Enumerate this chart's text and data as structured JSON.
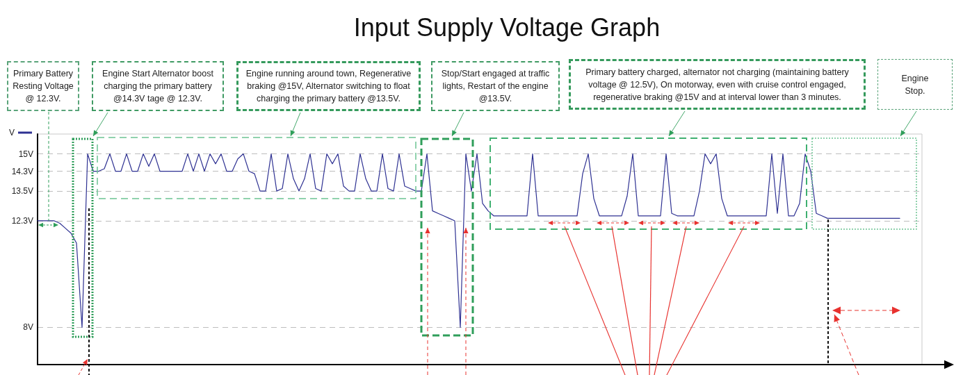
{
  "chart_data": {
    "type": "line",
    "title": "Input Supply Voltage Graph",
    "annotations": [
      "Primary Battery Resting Voltage @ 12.3V.",
      "Engine Start Alternator boost charging the primary battery @14.3V tage @ 12.3V.",
      "Engine running around town, Regenerative braking @15V, Alternator switching to float charging the primary battery @13.5V.",
      "Stop/Start engaged at traffic lights, Restart of the engine @13.5V.",
      "Primary battery charged, alternator not charging (maintaining battery voltage @ 12.5V), On motorway, even with cruise control engaged, regenerative braking @15V and at interval lower than 3 minutes.",
      "Engine Stop."
    ],
    "categories": [
      null,
      null,
      null,
      null,
      null,
      null,
      null,
      null,
      null,
      null,
      null,
      null,
      null,
      null,
      null,
      null,
      null,
      null,
      null,
      null,
      null,
      null,
      null,
      null,
      null,
      null,
      null,
      null,
      null,
      null,
      null,
      null,
      null,
      null,
      null,
      null,
      null,
      null,
      null,
      null,
      null,
      null,
      null,
      null,
      null,
      null,
      null,
      null,
      null,
      null,
      null,
      null,
      null,
      null,
      null,
      null,
      null,
      null,
      null,
      null,
      null,
      null,
      null,
      null,
      null,
      null,
      null,
      null,
      null,
      null,
      null,
      null,
      null,
      null,
      null,
      null,
      null,
      null,
      null,
      null,
      null,
      null,
      null,
      null,
      null,
      null,
      null,
      null,
      null,
      null,
      null,
      null,
      null,
      null,
      null,
      null,
      null,
      null,
      null,
      null,
      null,
      null,
      null,
      null,
      null,
      null,
      null,
      null,
      null,
      null,
      null,
      null,
      null,
      null,
      null,
      null,
      null,
      null,
      null,
      null,
      null,
      null,
      null,
      null,
      null,
      null,
      null,
      null,
      null,
      null,
      null,
      null,
      null,
      null,
      null,
      null,
      null,
      null,
      null,
      null,
      null,
      null,
      null,
      null,
      null,
      null,
      null,
      null,
      null,
      null,
      null,
      null,
      null,
      null,
      null,
      null,
      null,
      null,
      null,
      null
    ],
    "series": [
      {
        "name": "V",
        "color": "#2e3192",
        "values": [
          12.3,
          12.3,
          12.3,
          12.3,
          12.2,
          12.0,
          11.8,
          11.4,
          8,
          15,
          14.3,
          14.3,
          14.4,
          15,
          14.3,
          14.3,
          15,
          14.3,
          14.3,
          15,
          14.5,
          15,
          14.3,
          14.3,
          14.3,
          14.3,
          14.3,
          15,
          14.3,
          15,
          14.3,
          15,
          14.6,
          15,
          14.3,
          14.3,
          14.8,
          15,
          14.3,
          14.2,
          13.5,
          13.5,
          15,
          13.5,
          13.6,
          15,
          14.0,
          13.5,
          14.0,
          15,
          13.6,
          13.5,
          15,
          14.6,
          15,
          13.7,
          13.5,
          13.5,
          15,
          14.0,
          13.5,
          13.5,
          15,
          13.6,
          13.5,
          15,
          13.7,
          13.6,
          13.5,
          13.5,
          15,
          12.7,
          12.6,
          12.5,
          12.4,
          12.3,
          8,
          15,
          13.5,
          15,
          13.0,
          12.7,
          12.5,
          12.5,
          12.5,
          12.5,
          12.5,
          12.5,
          12.5,
          15,
          12.5,
          12.5,
          12.5,
          12.5,
          12.5,
          12.5,
          12.5,
          12.5,
          14.2,
          15,
          13.2,
          12.5,
          12.5,
          12.5,
          12.5,
          12.5,
          13.3,
          15,
          12.5,
          12.5,
          12.5,
          12.5,
          12.5,
          15,
          12.6,
          12.5,
          12.5,
          12.5,
          12.5,
          13.5,
          15,
          14.6,
          15,
          13.2,
          12.5,
          12.5,
          12.5,
          12.5,
          12.5,
          12.5,
          12.5,
          12.5,
          15,
          12.6,
          15,
          12.5,
          12.5,
          13.0,
          15,
          14.3,
          12.6,
          12.5,
          12.4,
          12.4,
          12.4,
          12.4,
          12.4,
          12.4,
          12.4,
          12.4,
          12.4,
          12.4,
          12.4,
          12.4,
          12.4,
          12.4,
          null,
          null,
          null,
          null
        ]
      }
    ],
    "ylim": [
      6.5,
      15.8
    ],
    "yticks": [
      {
        "value": 8,
        "label": "8V"
      },
      {
        "value": 12.3,
        "label": "12.3V"
      },
      {
        "value": 13.5,
        "label": "13.5V"
      },
      {
        "value": 14.3,
        "label": "14.3V"
      },
      {
        "value": 15,
        "label": "15V"
      }
    ],
    "tick_labels": "y",
    "grid": "y",
    "legend": "top left"
  }
}
